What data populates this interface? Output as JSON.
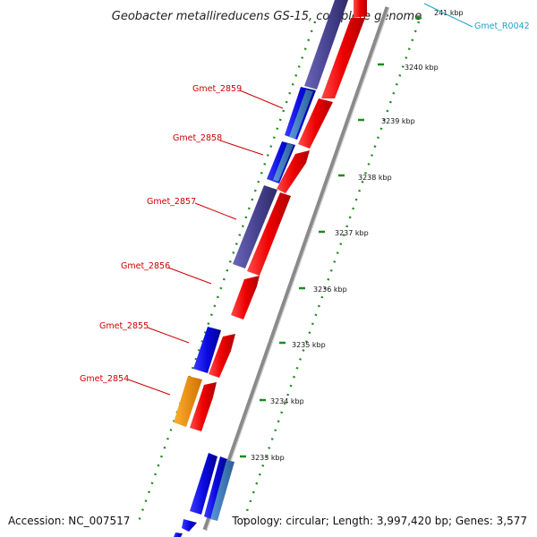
{
  "title": "Geobacter metallireducens GS-15, complete genome",
  "footer": {
    "accession": "Accession: NC_007517",
    "topology": "Topology: circular; Length: 3,997,420 bp; Genes: 3,577"
  },
  "colors": {
    "forward_cds": "#ee0000",
    "reverse_cds": "#0a0ae0",
    "reverse_dark": "#4a4593",
    "reverse_light": "#3b78b8",
    "rrna": "#f08c00",
    "tick_green": "#1f8a1f",
    "backbone": "#8a8a8a",
    "label_red": "#cc0000",
    "label_cyan": "#1aa3c9"
  },
  "ticks": [
    {
      "label": "3233 kbp"
    },
    {
      "label": "3234 kbp"
    },
    {
      "label": "3235 kbp"
    },
    {
      "label": "3236 kbp"
    },
    {
      "label": "3237 kbp"
    },
    {
      "label": "3238 kbp"
    },
    {
      "label": "3239 kbp"
    },
    {
      "label": "3240 kbp"
    },
    {
      "label": "241 kbp"
    }
  ],
  "gene_labels": [
    {
      "text": "Gmet_R0042"
    },
    {
      "text": "Gmet_2859"
    },
    {
      "text": "Gmet_2858"
    },
    {
      "text": "Gmet_2857"
    },
    {
      "text": "Gmet_2856"
    },
    {
      "text": "Gmet_2855"
    },
    {
      "text": "Gmet_2854"
    }
  ]
}
